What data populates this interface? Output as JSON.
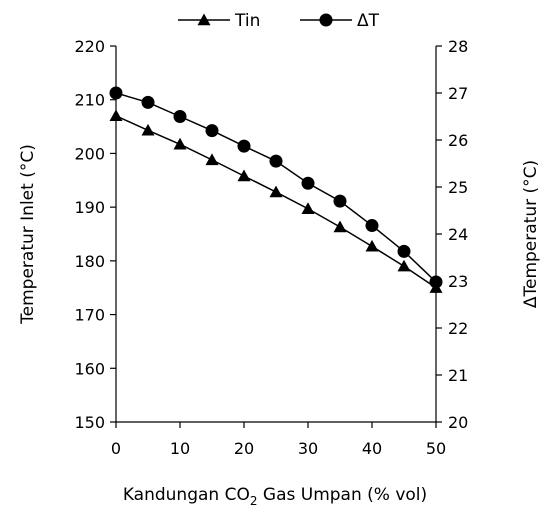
{
  "chart_data": {
    "type": "line",
    "x": [
      0,
      5,
      10,
      15,
      20,
      25,
      30,
      35,
      40,
      45,
      50
    ],
    "xlim": [
      0,
      50
    ],
    "xticks": [
      0,
      10,
      20,
      30,
      40,
      50
    ],
    "xlabel": {
      "main": "Kandungan CO",
      "sub": "2",
      "rest": " Gas Umpan (% vol)"
    },
    "y_left": {
      "label": "Temperatur Inlet (°C)",
      "lim": [
        150,
        220
      ],
      "ticks": [
        150,
        160,
        170,
        180,
        190,
        200,
        210,
        220
      ]
    },
    "y_right": {
      "label": "ΔTemperatur (°C)",
      "lim": [
        20,
        28
      ],
      "ticks": [
        20,
        21,
        22,
        23,
        24,
        25,
        26,
        27,
        28
      ]
    },
    "series": [
      {
        "name": "Tin",
        "axis": "left",
        "marker": "triangle",
        "values": [
          207,
          204.3,
          201.7,
          198.8,
          195.8,
          192.8,
          189.7,
          186.3,
          182.7,
          179,
          175
        ]
      },
      {
        "name": "ΔT",
        "axis": "right",
        "marker": "circle",
        "values": [
          27.0,
          26.8,
          26.5,
          26.2,
          25.87,
          25.55,
          25.08,
          24.7,
          24.18,
          23.63,
          22.98
        ]
      }
    ],
    "legend": "top-center",
    "grid": false,
    "colors": {
      "line": "#000000",
      "marker": "#000000"
    }
  }
}
